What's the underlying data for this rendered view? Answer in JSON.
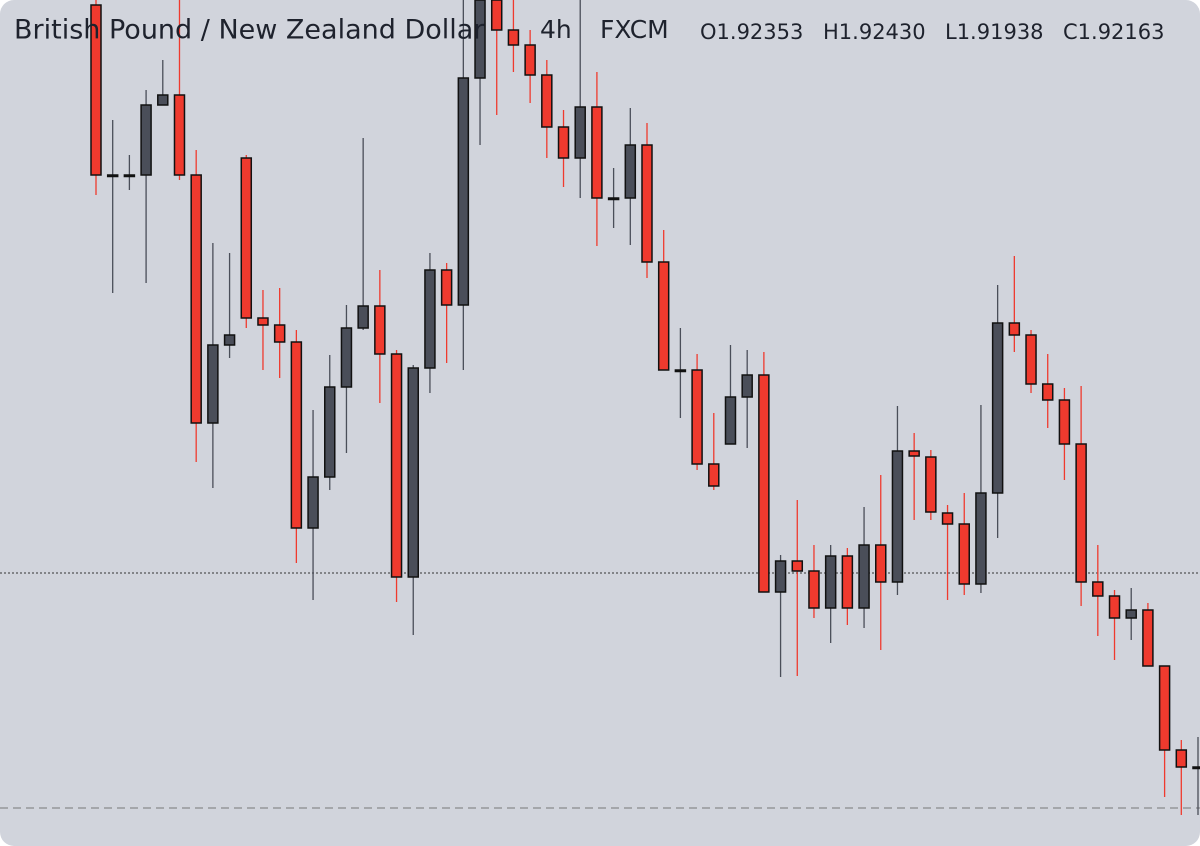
{
  "chart_data": {
    "type": "candlestick",
    "title": "British Pound / New Zealand Dollar",
    "interval": "4h",
    "source": "FXCM",
    "ohlc_legend": [
      "O1.92353",
      "H1.92430",
      "L1.91938",
      "C1.92163"
    ],
    "ylim": [
      1.9,
      1.9846
    ],
    "up_color": "#4a4e59",
    "down_color": "#ef3a2e",
    "hlines": [
      {
        "value": 1.9273,
        "style": "dotted"
      },
      {
        "value": 1.9038,
        "style": "dashed"
      }
    ],
    "open": [
      1.9841,
      1.9671,
      1.9671,
      1.9671,
      1.9741,
      1.9751,
      1.9671,
      1.9423,
      1.9501,
      1.9688,
      1.9528,
      1.9521,
      1.9504,
      1.9318,
      1.9369,
      1.9459,
      1.9518,
      1.954,
      1.9492,
      1.9269,
      1.9478,
      1.9576,
      1.9541,
      1.9768,
      1.9846,
      1.9816,
      1.9801,
      1.9771,
      1.9719,
      1.9688,
      1.9739,
      1.9648,
      1.9648,
      1.9701,
      1.9584,
      1.9476,
      1.9476,
      1.9382,
      1.9402,
      1.9449,
      1.9471,
      1.9254,
      1.9285,
      1.9275,
      1.9238,
      1.929,
      1.9238,
      1.9301,
      1.9264,
      1.9395,
      1.9389,
      1.9333,
      1.9322,
      1.9262,
      1.9353,
      1.9523,
      1.9511,
      1.9462,
      1.9446,
      1.9402,
      1.9264,
      1.925,
      1.9228,
      1.9236,
      1.918,
      1.9096,
      1.9079
    ],
    "high": [
      1.9846,
      1.9726,
      1.9691,
      1.9756,
      1.9786,
      1.9846,
      1.9696,
      1.9603,
      1.9593,
      1.9691,
      1.9556,
      1.9558,
      1.9516,
      1.9436,
      1.9491,
      1.9541,
      1.9708,
      1.9576,
      1.9496,
      1.9481,
      1.9593,
      1.9583,
      1.9846,
      1.9846,
      1.9846,
      1.9846,
      1.9816,
      1.9786,
      1.9736,
      1.9846,
      1.9774,
      1.9678,
      1.9738,
      1.9723,
      1.9616,
      1.9518,
      1.9492,
      1.9433,
      1.9501,
      1.9496,
      1.9494,
      1.9291,
      1.9346,
      1.9301,
      1.9301,
      1.9298,
      1.9339,
      1.9371,
      1.944,
      1.9413,
      1.9396,
      1.9341,
      1.9353,
      1.9441,
      1.9561,
      1.959,
      1.9516,
      1.9492,
      1.9458,
      1.946,
      1.9301,
      1.9256,
      1.9258,
      1.9243,
      1.918,
      1.9106,
      1.9109
    ],
    "low": [
      1.9651,
      1.9553,
      1.9656,
      1.9563,
      1.9741,
      1.9666,
      1.9384,
      1.9358,
      1.9488,
      1.9518,
      1.9476,
      1.9468,
      1.9283,
      1.9246,
      1.9356,
      1.9393,
      1.9516,
      1.9443,
      1.9244,
      1.9211,
      1.9453,
      1.9483,
      1.9476,
      1.9701,
      1.9731,
      1.9774,
      1.9743,
      1.9688,
      1.9659,
      1.9648,
      1.96,
      1.9618,
      1.9601,
      1.9568,
      1.9476,
      1.9428,
      1.9376,
      1.9356,
      1.9402,
      1.9398,
      1.9254,
      1.9169,
      1.917,
      1.9228,
      1.9203,
      1.9221,
      1.9218,
      1.9196,
      1.9251,
      1.9326,
      1.9326,
      1.9246,
      1.9251,
      1.9253,
      1.9308,
      1.9494,
      1.9453,
      1.9418,
      1.9366,
      1.924,
      1.921,
      1.9186,
      1.9206,
      1.918,
      1.9049,
      1.9031,
      1.9031
    ],
    "close": [
      1.9671,
      1.9671,
      1.9671,
      1.9741,
      1.9751,
      1.9671,
      1.9423,
      1.9501,
      1.9511,
      1.9528,
      1.9521,
      1.9504,
      1.9318,
      1.9369,
      1.9459,
      1.9518,
      1.954,
      1.9492,
      1.9269,
      1.9478,
      1.9576,
      1.9541,
      1.9768,
      1.9846,
      1.9816,
      1.9801,
      1.9771,
      1.9719,
      1.9688,
      1.9739,
      1.9648,
      1.9648,
      1.9701,
      1.9584,
      1.9476,
      1.9476,
      1.9382,
      1.936,
      1.9449,
      1.9471,
      1.9254,
      1.9285,
      1.9275,
      1.9238,
      1.929,
      1.9238,
      1.9301,
      1.9264,
      1.9395,
      1.939,
      1.9334,
      1.9322,
      1.9262,
      1.9353,
      1.9523,
      1.9511,
      1.9462,
      1.9446,
      1.9402,
      1.9264,
      1.925,
      1.9228,
      1.9236,
      1.918,
      1.9096,
      1.9079,
      1.9079
    ]
  }
}
